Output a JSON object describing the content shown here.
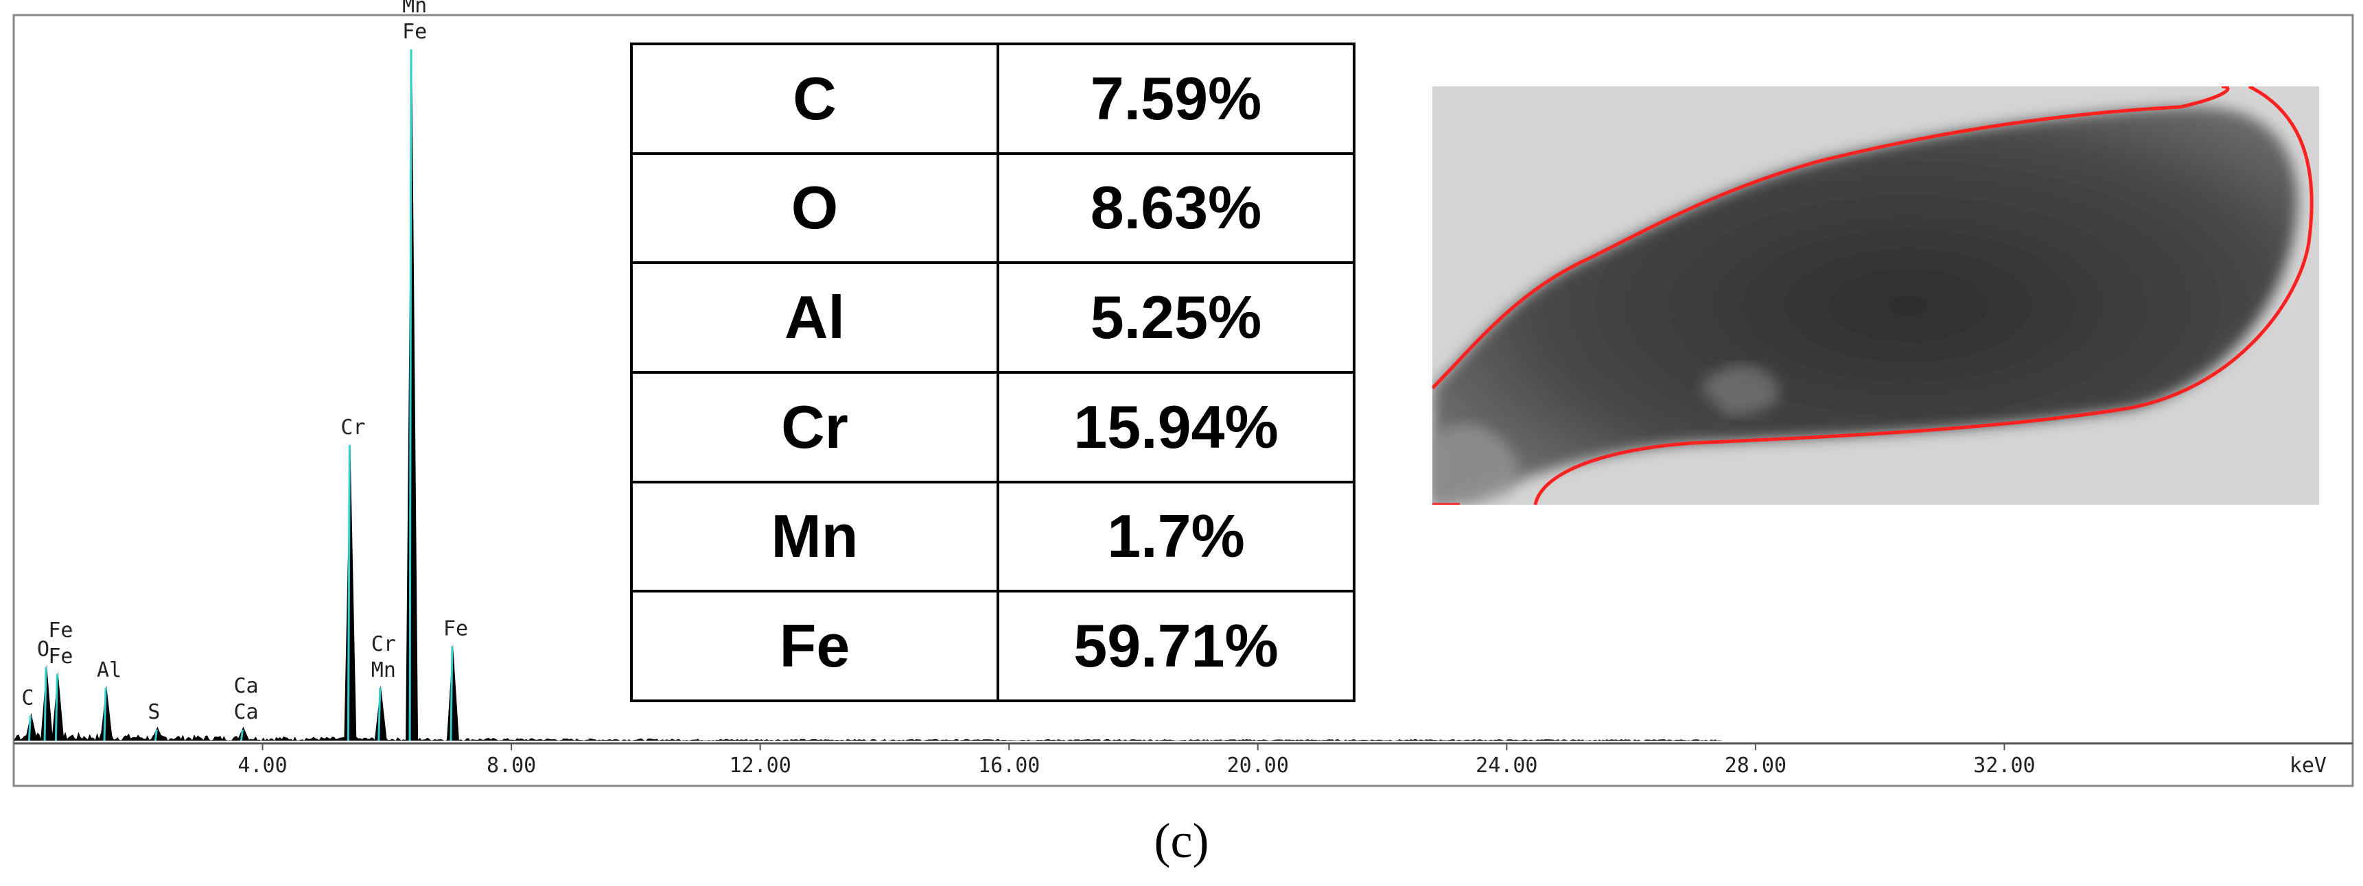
{
  "chart_data": {
    "type": "spectrum",
    "xunit": "keV",
    "x_ticks": [
      "4.00",
      "8.00",
      "12.00",
      "16.00",
      "20.00",
      "24.00",
      "28.00",
      "32.00"
    ],
    "xlim": [
      0,
      37.6
    ],
    "ylim": [
      0,
      100
    ],
    "peaks": [
      {
        "x": 0.28,
        "y": 4
      },
      {
        "x": 0.53,
        "y": 11
      },
      {
        "x": 0.71,
        "y": 10
      },
      {
        "x": 1.49,
        "y": 8
      },
      {
        "x": 2.31,
        "y": 2
      },
      {
        "x": 3.69,
        "y": 2
      },
      {
        "x": 5.41,
        "y": 43
      },
      {
        "x": 5.9,
        "y": 8
      },
      {
        "x": 6.4,
        "y": 100
      },
      {
        "x": 7.06,
        "y": 14
      }
    ],
    "peak_labels": [
      {
        "text": "C",
        "x": 0.28,
        "y": 4
      },
      {
        "text": "O",
        "x": 0.53,
        "y": 11
      },
      {
        "text": "Fe",
        "x": 0.71,
        "y": 10
      },
      {
        "text": "Fe",
        "x": 0.71,
        "y": 10
      },
      {
        "text": "Al",
        "x": 1.49,
        "y": 8
      },
      {
        "text": "S",
        "x": 2.31,
        "y": 2
      },
      {
        "text": "Ca",
        "x": 3.69,
        "y": 2
      },
      {
        "text": "Ca",
        "x": 3.69,
        "y": 2
      },
      {
        "text": "Cr",
        "x": 5.41,
        "y": 43
      },
      {
        "text": "Mn",
        "x": 5.9,
        "y": 8
      },
      {
        "text": "Cr",
        "x": 5.9,
        "y": 8
      },
      {
        "text": "Fe",
        "x": 6.4,
        "y": 100
      },
      {
        "text": "Mn",
        "x": 6.4,
        "y": 100
      },
      {
        "text": "Fe",
        "x": 7.06,
        "y": 14
      }
    ],
    "grid": false
  },
  "composition_table": [
    {
      "element": "C",
      "value": "7.59%"
    },
    {
      "element": "O",
      "value": "8.63%"
    },
    {
      "element": "Al",
      "value": "5.25%"
    },
    {
      "element": "Cr",
      "value": "15.94%"
    },
    {
      "element": "Mn",
      "value": "1.7%"
    },
    {
      "element": "Fe",
      "value": "59.71%"
    }
  ],
  "sem_image": {
    "outline_color": "#ff2020",
    "background_color": "#d4d4d4",
    "particle_color": "#3a3a3a"
  },
  "colors": {
    "spectrum_fill": "#000000",
    "spectrum_highlight": "#33cccc"
  },
  "caption": "(c)"
}
